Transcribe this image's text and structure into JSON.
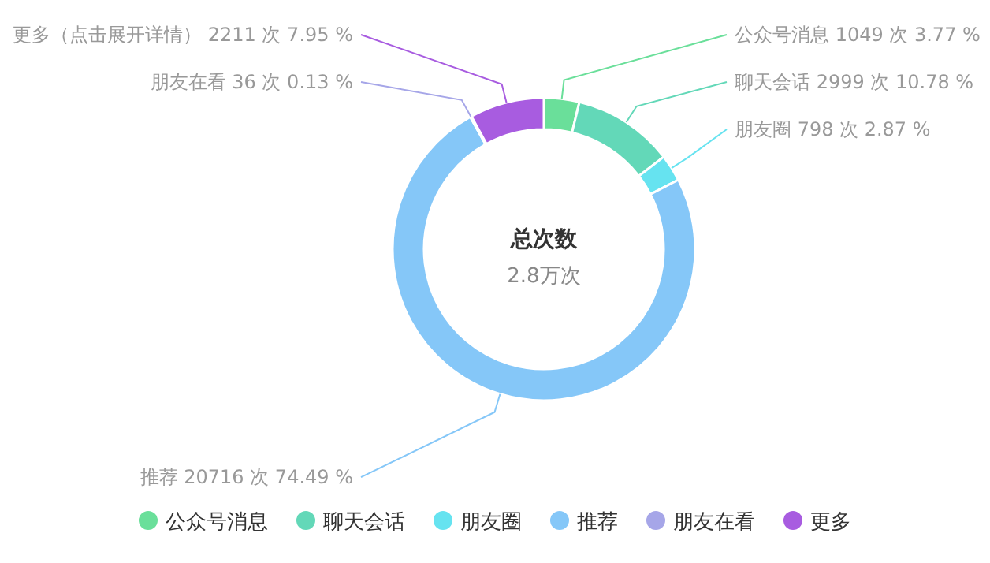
{
  "chart_data": {
    "type": "donut",
    "title": "总次数",
    "annotations": [
      "2.8万次"
    ],
    "categories": [
      "公众号消息",
      "聊天会话",
      "朋友圈",
      "推荐",
      "朋友在看",
      "更多"
    ],
    "values": [
      1049,
      2999,
      798,
      20716,
      36,
      2211
    ],
    "value_labels": [
      "公众号消息 1049 次 3.77 %",
      "聊天会话 2999 次 10.78 %",
      "朋友圈 798 次 2.87 %",
      "推荐 20716 次 74.49 %",
      "朋友在看 36 次 0.13 %",
      "更多（点击展开详情） 2211 次 7.95 %"
    ],
    "colors": [
      "#6adf9a",
      "#63d8b8",
      "#66e3f0",
      "#85c7f8",
      "#a6a6e8",
      "#a85ce0"
    ],
    "legend": "bottom"
  }
}
